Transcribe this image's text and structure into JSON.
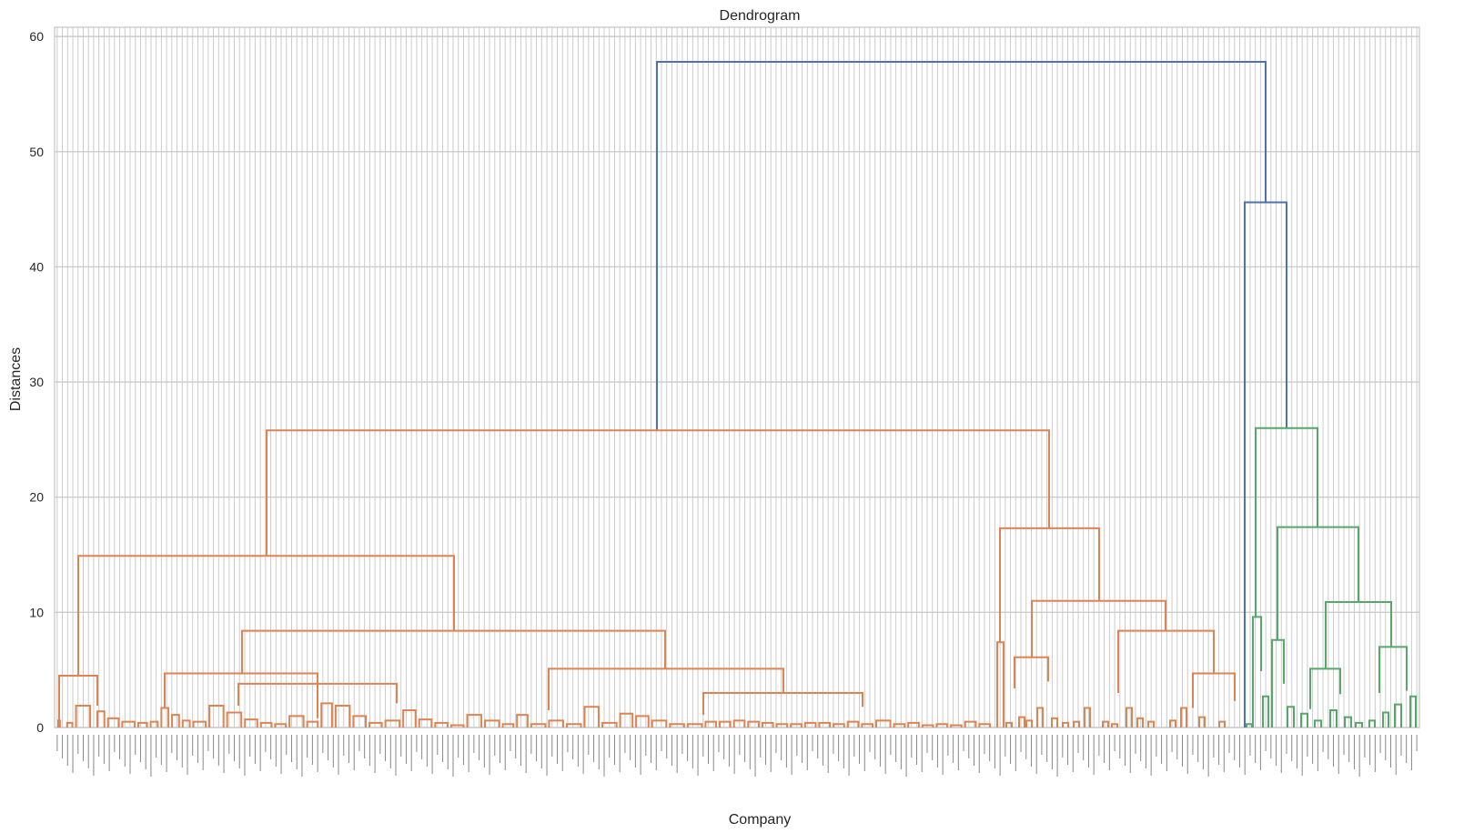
{
  "chart_data": {
    "type": "dendrogram",
    "title": "Dendrogram",
    "xlabel": "Company",
    "ylabel": "Distances",
    "ylim": [
      0,
      60.8
    ],
    "yticks": [
      0,
      10,
      20,
      30,
      40,
      50,
      60
    ],
    "grid": true,
    "leaf_count": 262,
    "leaf_labels_legible": false,
    "colors": {
      "root": "#4c72b0",
      "cluster_orange": "#dd8452",
      "cluster_green": "#55a868",
      "grid": "#cccccc",
      "text": "#262626"
    },
    "cluster_colors": [
      "#dd8452",
      "#55a868"
    ],
    "merge_heights": {
      "root": 57.8,
      "root_right": 45.6,
      "orange_main": 25.8,
      "orange_left": 14.9,
      "orange_left_a": 4.5,
      "orange_left_b": 8.4,
      "orange_left_b1": 4.7,
      "orange_left_b1_sub": 3.8,
      "orange_left_b2": 5.1,
      "orange_left_b2_sub": 3.0,
      "orange_right": 17.3,
      "orange_right_a": 7.4,
      "orange_right_b": 11.0,
      "orange_right_b1": 6.1,
      "orange_right_b2": 8.4,
      "orange_right_b2_sub": 4.7,
      "green_main": 26.0,
      "green_left": 9.6,
      "green_right": 17.4,
      "green_right_a": 7.6,
      "green_right_b": 10.9,
      "green_right_b1": 5.1,
      "green_right_b2": 7.0
    },
    "links": [
      {
        "x": [
          722,
          1391
        ],
        "y": 57.8,
        "color": "root"
      },
      {
        "x": [
          1368,
          1414
        ],
        "y": 45.6,
        "color": "root"
      },
      {
        "x": [
          293,
          1153
        ],
        "y": 25.8,
        "color": "orange"
      },
      {
        "x": [
          86,
          499
        ],
        "y": 14.9,
        "color": "orange"
      },
      {
        "x": [
          65,
          107
        ],
        "y": 4.5,
        "color": "orange"
      },
      {
        "x": [
          266,
          731
        ],
        "y": 8.4,
        "color": "orange"
      },
      {
        "x": [
          181,
          349
        ],
        "y": 4.7,
        "color": "orange"
      },
      {
        "x": [
          262,
          436
        ],
        "y": 3.8,
        "color": "orange"
      },
      {
        "x": [
          603,
          861
        ],
        "y": 5.1,
        "color": "orange"
      },
      {
        "x": [
          773,
          948
        ],
        "y": 3.0,
        "color": "orange"
      },
      {
        "x": [
          1099,
          1208
        ],
        "y": 17.3,
        "color": "orange"
      },
      {
        "x": [
          1096,
          1103
        ],
        "y": 7.4,
        "color": "orange"
      },
      {
        "x": [
          1134,
          1281
        ],
        "y": 11.0,
        "color": "orange"
      },
      {
        "x": [
          1115,
          1152
        ],
        "y": 6.1,
        "color": "orange"
      },
      {
        "x": [
          1229,
          1334
        ],
        "y": 8.4,
        "color": "orange"
      },
      {
        "x": [
          1311,
          1357
        ],
        "y": 4.7,
        "color": "orange"
      },
      {
        "x": [
          1380,
          1448
        ],
        "y": 26.0,
        "color": "green"
      },
      {
        "x": [
          1377,
          1386
        ],
        "y": 9.6,
        "color": "green"
      },
      {
        "x": [
          1404,
          1493
        ],
        "y": 17.4,
        "color": "green"
      },
      {
        "x": [
          1398,
          1411
        ],
        "y": 7.6,
        "color": "green"
      },
      {
        "x": [
          1457,
          1529
        ],
        "y": 10.9,
        "color": "green"
      },
      {
        "x": [
          1440,
          1473
        ],
        "y": 5.1,
        "color": "green"
      },
      {
        "x": [
          1516,
          1546
        ],
        "y": 7.0,
        "color": "green"
      }
    ],
    "orange_small_clusters": [
      [
        0,
        3,
        0.6
      ],
      [
        5,
        10,
        0.4
      ],
      [
        10,
        20,
        1.9
      ],
      [
        22,
        28,
        1.4
      ],
      [
        28,
        36,
        0.8
      ],
      [
        36,
        45,
        0.5
      ],
      [
        45,
        52,
        0.4
      ],
      [
        52,
        58,
        0.5
      ],
      [
        58,
        64,
        1.7
      ],
      [
        64,
        70,
        1.1
      ],
      [
        70,
        76,
        0.6
      ],
      [
        76,
        85,
        0.5
      ],
      [
        85,
        95,
        1.9
      ],
      [
        95,
        105,
        1.3
      ],
      [
        105,
        114,
        0.7
      ],
      [
        114,
        122,
        0.4
      ],
      [
        122,
        130,
        0.3
      ],
      [
        130,
        140,
        1.0
      ],
      [
        140,
        148,
        0.5
      ],
      [
        148,
        156,
        2.1
      ],
      [
        156,
        166,
        1.9
      ],
      [
        166,
        175,
        1.0
      ],
      [
        175,
        184,
        0.4
      ],
      [
        184,
        194,
        0.6
      ],
      [
        194,
        203,
        1.5
      ],
      [
        203,
        212,
        0.7
      ],
      [
        212,
        221,
        0.4
      ],
      [
        221,
        230,
        0.2
      ],
      [
        230,
        240,
        1.1
      ],
      [
        240,
        250,
        0.6
      ],
      [
        250,
        258,
        0.3
      ],
      [
        258,
        266,
        1.1
      ],
      [
        266,
        276,
        0.3
      ],
      [
        276,
        286,
        0.6
      ],
      [
        286,
        296,
        0.3
      ],
      [
        296,
        306,
        1.8
      ],
      [
        306,
        316,
        0.4
      ],
      [
        316,
        325,
        1.2
      ],
      [
        325,
        334,
        1.0
      ],
      [
        334,
        344,
        0.6
      ],
      [
        344,
        354,
        0.3
      ],
      [
        354,
        364,
        0.3
      ],
      [
        364,
        372,
        0.5
      ],
      [
        372,
        380,
        0.5
      ],
      [
        380,
        388,
        0.6
      ],
      [
        388,
        396,
        0.5
      ],
      [
        396,
        404,
        0.4
      ],
      [
        404,
        412,
        0.3
      ],
      [
        412,
        420,
        0.3
      ],
      [
        420,
        428,
        0.4
      ],
      [
        428,
        436,
        0.4
      ],
      [
        436,
        444,
        0.3
      ],
      [
        444,
        452,
        0.5
      ],
      [
        452,
        460,
        0.3
      ],
      [
        460,
        470,
        0.6
      ],
      [
        470,
        478,
        0.3
      ],
      [
        478,
        486,
        0.4
      ],
      [
        486,
        494,
        0.2
      ],
      [
        494,
        502,
        0.3
      ],
      [
        502,
        510,
        0.2
      ],
      [
        510,
        518,
        0.5
      ],
      [
        518,
        526,
        0.3
      ]
    ]
  }
}
